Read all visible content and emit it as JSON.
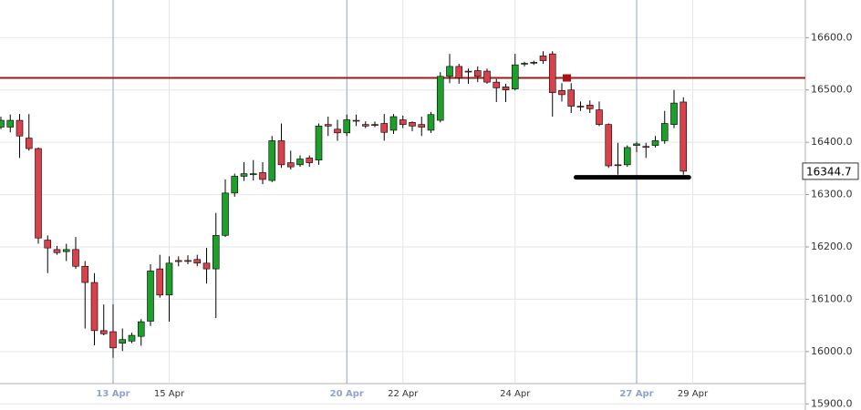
{
  "chart_data": {
    "type": "candlestick",
    "categories": [
      null,
      null,
      null,
      null,
      null,
      null,
      null,
      null,
      null,
      null,
      null,
      null,
      "13 Apr",
      null,
      null,
      null,
      null,
      null,
      "15 Apr",
      null,
      null,
      null,
      null,
      null,
      null,
      null,
      null,
      null,
      null,
      null,
      null,
      null,
      null,
      null,
      null,
      null,
      null,
      "20 Apr",
      null,
      null,
      null,
      null,
      null,
      "22 Apr",
      null,
      null,
      null,
      null,
      null,
      null,
      null,
      null,
      null,
      null,
      null,
      "24 Apr",
      null,
      null,
      null,
      null,
      null,
      null,
      null,
      null,
      null,
      null,
      null,
      null,
      "27 Apr",
      null,
      null,
      null,
      null,
      null,
      "29 Apr"
    ],
    "open": [
      16429,
      16429,
      16442,
      16408,
      16388,
      16213,
      16195,
      16191,
      16195,
      16163,
      16132,
      16040,
      16038,
      16016,
      16020,
      16029,
      16058,
      16158,
      16108,
      16174,
      16174,
      16176,
      16169,
      16158,
      16222,
      16303,
      16335,
      16338,
      16342,
      16327,
      16403,
      16361,
      16357,
      16370,
      16366,
      16434,
      16425,
      16418,
      16442,
      16434,
      16434,
      16436,
      16423,
      16443,
      16438,
      16434,
      16423,
      16442,
      16526,
      16545,
      16536,
      16537,
      16536,
      16515,
      16506,
      16502,
      16550,
      16552,
      16565,
      16569,
      16499,
      16500,
      16469,
      16471,
      16462,
      16434,
      16357,
      16357,
      16394,
      16392,
      16394,
      16403,
      16434,
      16477,
      null
    ],
    "high": [
      16449,
      16453,
      16454,
      16454,
      16390,
      16222,
      16202,
      16206,
      16219,
      16173,
      16150,
      16090,
      16090,
      16044,
      16036,
      16062,
      16167,
      16185,
      16182,
      16182,
      16184,
      16185,
      16198,
      16265,
      16329,
      16340,
      16362,
      16366,
      16362,
      16412,
      16436,
      16384,
      16375,
      16375,
      16436,
      16449,
      16443,
      16453,
      16453,
      16440,
      16440,
      16454,
      16454,
      16451,
      16440,
      16449,
      16458,
      16534,
      16569,
      16550,
      16541,
      16545,
      16541,
      16521,
      16512,
      16569,
      16554,
      16556,
      16574,
      16574,
      16513,
      16513,
      16478,
      16480,
      16478,
      16436,
      16399,
      16394,
      16401,
      16399,
      16412,
      16460,
      16500,
      16486,
      null
    ],
    "low": [
      16425,
      16419,
      16370,
      16384,
      16206,
      16150,
      16185,
      16173,
      16158,
      16044,
      16012,
      16031,
      15988,
      16001,
      16016,
      16011,
      16049,
      16103,
      16057,
      16163,
      16167,
      16163,
      16130,
      16064,
      16219,
      16296,
      16326,
      16327,
      16320,
      16324,
      16351,
      16348,
      16353,
      16353,
      16357,
      16412,
      16403,
      16412,
      16431,
      16427,
      16429,
      16403,
      16416,
      16427,
      16421,
      16412,
      16418,
      16438,
      16513,
      16512,
      16512,
      16515,
      16512,
      16477,
      16477,
      16499,
      16545,
      16548,
      16550,
      16449,
      16478,
      16456,
      16460,
      16456,
      16431,
      16351,
      16338,
      16353,
      16381,
      16370,
      16390,
      16397,
      16427,
      16338,
      null
    ],
    "close": [
      16442,
      16442,
      16412,
      16388,
      16217,
      16198,
      16189,
      16195,
      16163,
      16132,
      16040,
      16034,
      16007,
      16023,
      16031,
      16057,
      16154,
      16108,
      16169,
      16172,
      16173,
      16169,
      16158,
      16222,
      16303,
      16335,
      16340,
      16340,
      16329,
      16403,
      16357,
      16353,
      16368,
      16361,
      16431,
      16431,
      16418,
      16443,
      16441,
      16431,
      16433,
      16419,
      16449,
      16434,
      16431,
      16429,
      16453,
      16526,
      16545,
      16523,
      16535,
      16526,
      16515,
      16504,
      16500,
      16548,
      16551,
      16553,
      16556,
      16495,
      16491,
      16469,
      16468,
      16464,
      16434,
      16355,
      16356,
      16390,
      16397,
      16391,
      16403,
      16436,
      16475,
      16344.7,
      null
    ],
    "up_color": "#1e9e2a",
    "down_color": "#d9414b",
    "ylim": [
      15890,
      16665
    ],
    "yticks": [
      {
        "value": 15900,
        "label": "15900.0"
      },
      {
        "value": 16000,
        "label": "16000.0"
      },
      {
        "value": 16100,
        "label": "16100.0"
      },
      {
        "value": 16200,
        "label": "16200.0"
      },
      {
        "value": 16300,
        "label": "16300.0"
      },
      {
        "value": 16400,
        "label": "16400.0"
      },
      {
        "value": 16500,
        "label": "16500.0"
      },
      {
        "value": 16600,
        "label": "16600.0"
      }
    ],
    "grid": true,
    "week_start_labels": [
      "13 Apr",
      "20 Apr",
      "27 Apr"
    ],
    "week_start_color": "#8ea3cf",
    "last_price": 16344.7,
    "resistance_line": {
      "value": 16523,
      "color": "#9e1b1b"
    },
    "support_line": {
      "value": 16333,
      "from": 62,
      "to": 73,
      "color": "#000000"
    }
  }
}
